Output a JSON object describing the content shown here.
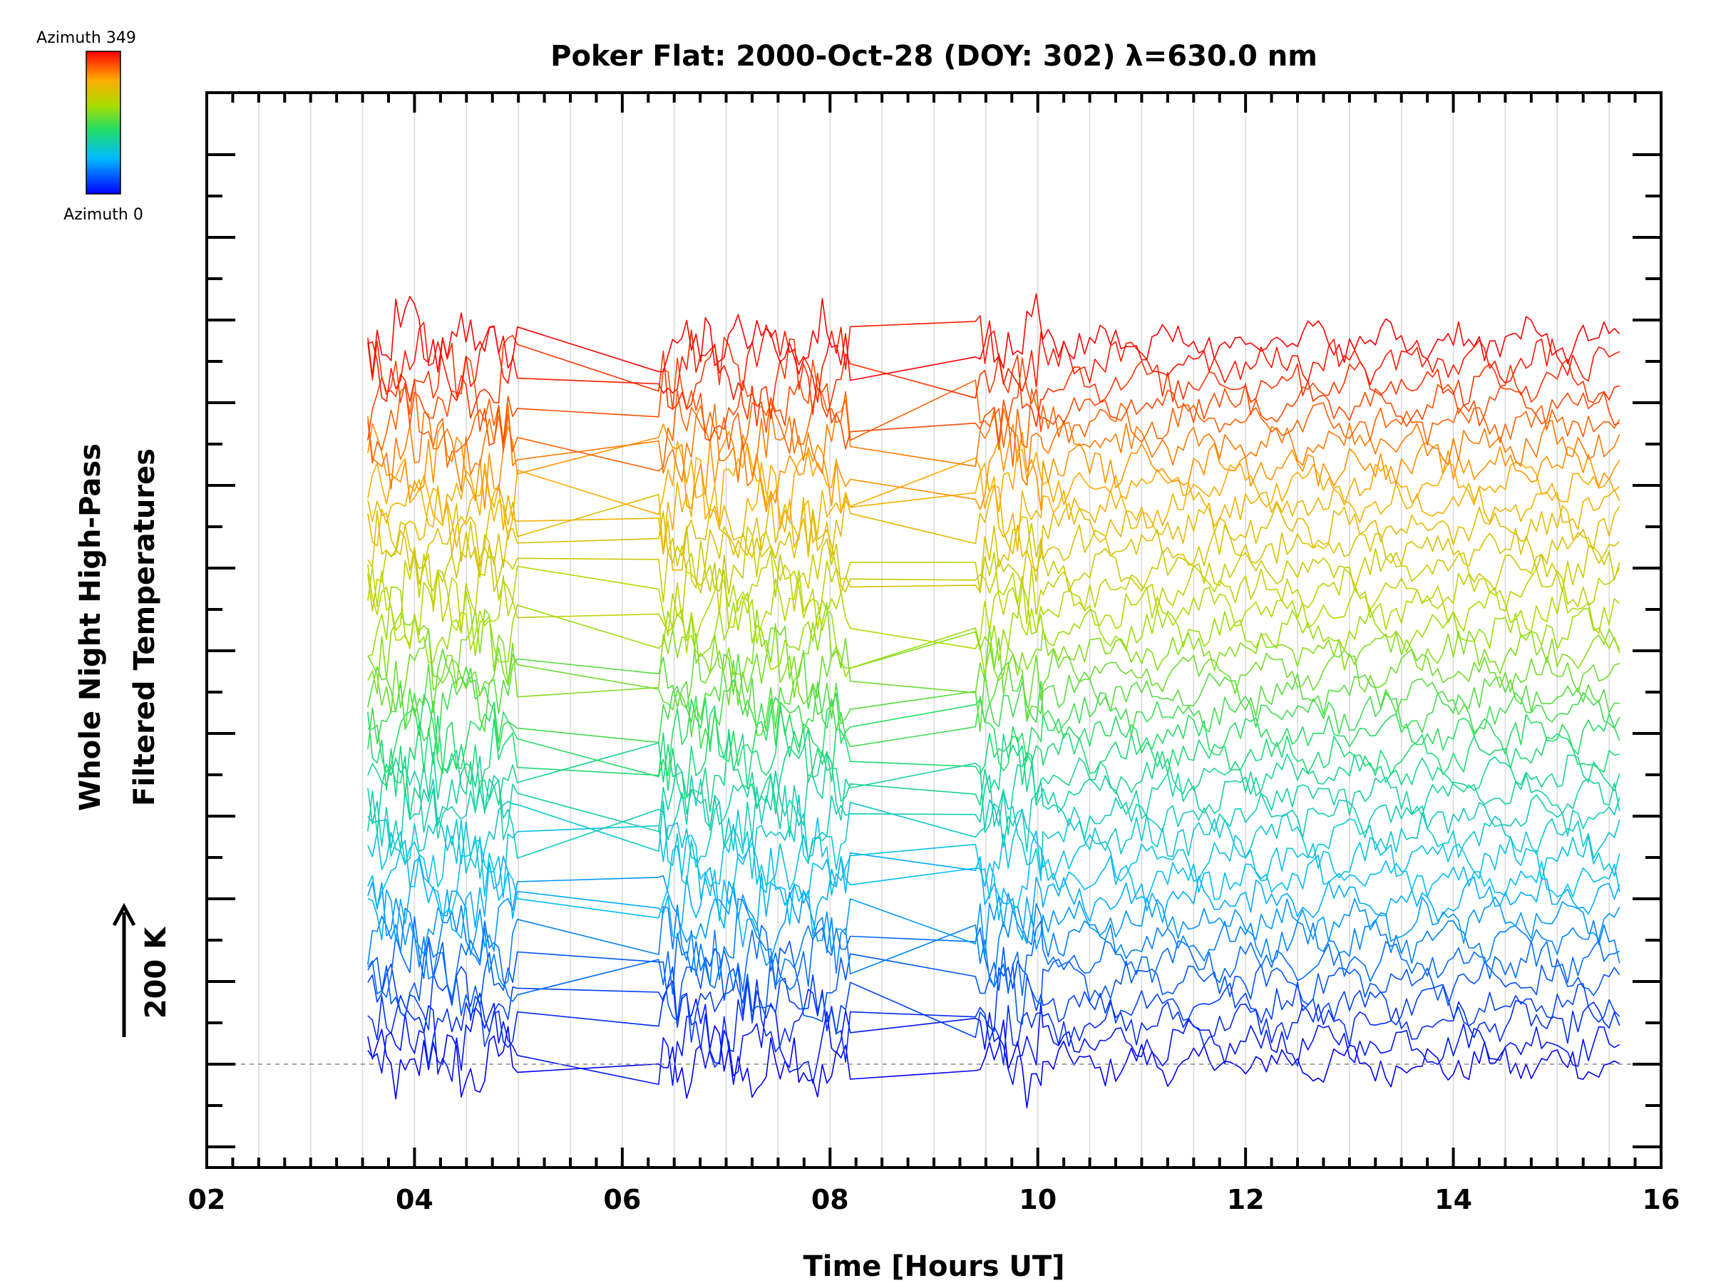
{
  "chart_data": {
    "type": "line",
    "title": "Poker Flat: 2000-Oct-28 (DOY: 302) λ=630.0 nm",
    "xlabel": "Time [Hours UT]",
    "ylabel_line1": "Whole Night High-Pass",
    "ylabel_line2": "Filtered Temperatures",
    "scale_bar_label": "200 K",
    "xlim": [
      2,
      16
    ],
    "x_ticks": [
      "02",
      "04",
      "06",
      "08",
      "10",
      "12",
      "14",
      "16"
    ],
    "ylim": [
      -250,
      2350
    ],
    "y_major_tick_spacing": 200,
    "colorbar": {
      "top_label": "Azimuth 349",
      "bottom_label": "Azimuth 0",
      "min": 0,
      "max": 349,
      "palette": "rainbow"
    },
    "series_layout": {
      "count": 36,
      "offset_per_series_K": 50
    },
    "amplitude_K": {
      "dense_segments": 90,
      "after_10UT": 45
    },
    "observation_segments": [
      {
        "start": 3.55,
        "end": 5.0
      },
      {
        "start": 6.35,
        "end": 8.2
      },
      {
        "start": 9.4,
        "end": 10.05
      },
      {
        "start": 10.05,
        "end": 15.6
      }
    ],
    "grid": true,
    "zero_line_dashed": true
  }
}
